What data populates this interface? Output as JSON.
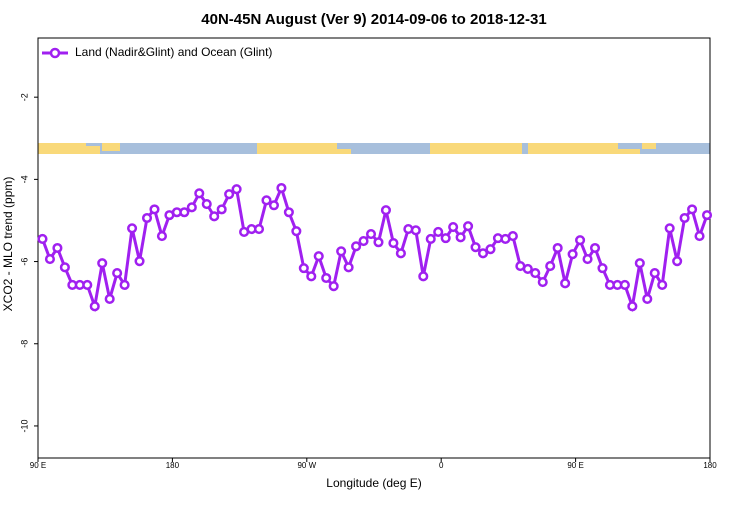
{
  "chart_data": {
    "type": "line",
    "title": "40N-45N August (Ver 9)   2014-09-06 to 2018-12-31",
    "x_label": "Longitude (deg E)",
    "y_label": "XCO2 - MLO trend (ppm)",
    "x": [
      93,
      98,
      103,
      108,
      113,
      118,
      123,
      128,
      133,
      138,
      143,
      148,
      153,
      158,
      163,
      168,
      173,
      178,
      183,
      188,
      193,
      198,
      203,
      208,
      213,
      218,
      223,
      228,
      233,
      238,
      243,
      248,
      253,
      258,
      263,
      268,
      273,
      278,
      283,
      288,
      293,
      298,
      303,
      308,
      313,
      318,
      323,
      328,
      333,
      338,
      343,
      348,
      353,
      358,
      363,
      368,
      373,
      378,
      383,
      388,
      393,
      398,
      403,
      408,
      413,
      418,
      423,
      428,
      433,
      438,
      443,
      448,
      453,
      458,
      463,
      468,
      473,
      478,
      483,
      488,
      493,
      498,
      503,
      508,
      513,
      518,
      523,
      528,
      533,
      538
    ],
    "series": [
      {
        "name": "Land (Nadir&Glint) and Ocean (Glint)",
        "color": "#a020f0",
        "values": [
          -5.45,
          -5.94,
          -5.67,
          -6.14,
          -6.57,
          -6.57,
          -6.57,
          -7.09,
          -6.04,
          -6.91,
          -6.28,
          -6.57,
          -5.19,
          -5.99,
          -4.94,
          -4.73,
          -5.38,
          -4.87,
          -4.8,
          -4.8,
          -4.68,
          -4.34,
          -4.6,
          -4.9,
          -4.73,
          -4.36,
          -4.24,
          -5.28,
          -5.21,
          -5.21,
          -4.51,
          -4.63,
          -4.21,
          -4.8,
          -5.26,
          -6.16,
          -6.36,
          -5.87,
          -6.4,
          -6.6,
          -5.75,
          -6.14,
          -5.63,
          -5.5,
          -5.33,
          -5.53,
          -4.75,
          -5.55,
          -5.8,
          -5.21,
          -5.24,
          -6.36,
          -5.45,
          -5.28,
          -5.43,
          -5.16,
          -5.41,
          -5.14,
          -5.65,
          -5.8,
          -5.7,
          -5.43,
          -5.45,
          -5.38,
          -6.11,
          -6.18,
          -6.28,
          -6.5,
          -6.11,
          -5.67,
          -6.53,
          -5.82,
          -5.48,
          -5.94,
          -5.67,
          -6.16,
          -6.57,
          -6.57,
          -6.57,
          -7.09,
          -6.04,
          -6.91,
          -6.28,
          -6.57,
          -5.19,
          -5.99,
          -4.94,
          -4.73,
          -5.38,
          -4.87
        ]
      }
    ],
    "xlim": [
      90,
      540
    ],
    "xticks": [
      {
        "value": 90,
        "label": "90 E"
      },
      180,
      {
        "value": 270,
        "label": "90 W"
      },
      {
        "value": 360,
        "label": "0"
      },
      {
        "value": 450,
        "label": "90 E"
      },
      {
        "value": 540,
        "label": "180"
      }
    ],
    "ylim": [
      -10.78,
      -0.56
    ],
    "yticks": [
      -10,
      -8,
      -6,
      -4,
      -2
    ],
    "legend": "top-left"
  }
}
